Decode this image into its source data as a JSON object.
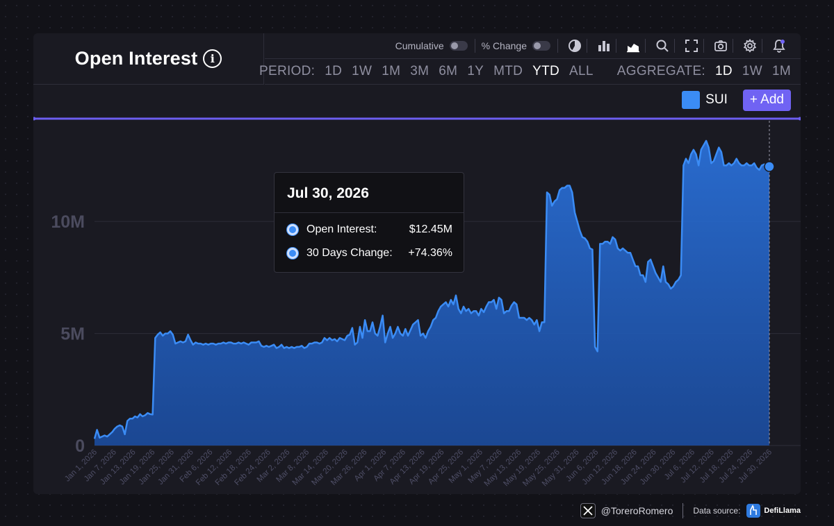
{
  "header": {
    "title": "Open Interest",
    "info_icon": "i"
  },
  "toolbar": {
    "cumulative_label": "Cumulative",
    "pct_change_label": "% Change",
    "icons": [
      "pie-chart-icon",
      "bar-chart-icon",
      "area-chart-icon",
      "search-icon",
      "fullscreen-icon",
      "camera-icon",
      "gear-icon",
      "bell-icon"
    ]
  },
  "period": {
    "label": "PERIOD:",
    "options": [
      "1D",
      "1W",
      "1M",
      "3M",
      "6M",
      "1Y",
      "MTD",
      "YTD",
      "ALL"
    ],
    "selected": "YTD"
  },
  "aggregate": {
    "label": "AGGREGATE:",
    "options": [
      "1D",
      "1W",
      "1M"
    ],
    "selected": "1D"
  },
  "legend": {
    "series_label": "SUI",
    "add_label": "+ Add"
  },
  "tooltip": {
    "date": "Jul 30, 2026",
    "rows": [
      {
        "label": "Open Interest:",
        "value": "$12.45M"
      },
      {
        "label": "30 Days Change:",
        "value": "+74.36%"
      }
    ]
  },
  "footer": {
    "handle": "@ToreroRomero",
    "source_label": "Data source:",
    "brand": "DefiLlama"
  },
  "colors": {
    "series": "#3b8cf5",
    "accent": "#7063f3",
    "background": "#1a1a22"
  },
  "chart_data": {
    "type": "area",
    "title": "Open Interest",
    "xlabel": "",
    "ylabel": "",
    "ylim": [
      0,
      14000000
    ],
    "yticks": [
      0,
      5000000,
      10000000
    ],
    "ytick_labels": [
      "0",
      "5M",
      "10M"
    ],
    "x_tick_labels": [
      "Jan 1, 2026",
      "Jan 7, 2026",
      "Jan 13, 2026",
      "Jan 19, 2026",
      "Jan 25, 2026",
      "Jan 31, 2026",
      "Feb 6, 2026",
      "Feb 12, 2026",
      "Feb 18, 2026",
      "Feb 24, 2026",
      "Mar 2, 2026",
      "Mar 8, 2026",
      "Mar 14, 2026",
      "Mar 20, 2026",
      "Mar 26, 2026",
      "Apr 1, 2026",
      "Apr 7, 2026",
      "Apr 13, 2026",
      "Apr 19, 2026",
      "Apr 25, 2026",
      "May 1, 2026",
      "May 7, 2026",
      "May 13, 2026",
      "May 19, 2026",
      "May 25, 2026",
      "May 31, 2026",
      "Jun 6, 2026",
      "Jun 12, 2026",
      "Jun 18, 2026",
      "Jun 24, 2026",
      "Jun 30, 2026",
      "Jul 6, 2026",
      "Jul 12, 2026",
      "Jul 18, 2026",
      "Jul 24, 2026",
      "Jul 30, 2026"
    ],
    "grid": true,
    "legend": "top-right",
    "series": [
      {
        "name": "SUI",
        "color": "#3b8cf5",
        "values": [
          0.3,
          0.7,
          0.35,
          0.4,
          0.45,
          0.4,
          0.5,
          0.6,
          0.75,
          0.85,
          0.9,
          0.85,
          0.5,
          1.1,
          1.2,
          1.2,
          1.3,
          1.25,
          1.4,
          1.3,
          1.35,
          1.45,
          1.4,
          1.38,
          4.8,
          4.95,
          5.05,
          4.9,
          5.0,
          5.0,
          5.1,
          4.95,
          4.55,
          4.6,
          4.65,
          4.6,
          4.65,
          4.95,
          4.7,
          4.5,
          4.6,
          4.55,
          4.55,
          4.5,
          4.55,
          4.5,
          4.55,
          4.55,
          4.5,
          4.55,
          4.55,
          4.6,
          4.55,
          4.6,
          4.6,
          4.55,
          4.55,
          4.6,
          4.55,
          4.6,
          4.55,
          4.5,
          4.6,
          4.6,
          4.6,
          4.65,
          4.45,
          4.4,
          4.45,
          4.4,
          4.45,
          4.5,
          4.35,
          4.4,
          4.5,
          4.35,
          4.4,
          4.35,
          4.4,
          4.35,
          4.4,
          4.4,
          4.45,
          4.35,
          4.4,
          4.55,
          4.55,
          4.6,
          4.6,
          4.55,
          4.6,
          4.8,
          4.7,
          4.8,
          4.7,
          4.75,
          4.65,
          4.8,
          4.75,
          4.7,
          4.9,
          4.95,
          5.25,
          4.5,
          4.6,
          5.3,
          4.8,
          5.6,
          5.1,
          5.1,
          5.5,
          5.0,
          4.9,
          5.3,
          5.8,
          4.6,
          5.0,
          5.3,
          4.8,
          5.0,
          5.3,
          5.0,
          4.9,
          5.2,
          4.9,
          5.15,
          5.4,
          5.5,
          5.6,
          4.9,
          5.0,
          4.8,
          5.1,
          5.3,
          5.6,
          5.7,
          6.0,
          6.2,
          6.3,
          6.4,
          6.2,
          6.5,
          6.3,
          6.7,
          6.1,
          5.9,
          6.2,
          6.0,
          6.1,
          5.9,
          6.0,
          6.0,
          5.8,
          6.1,
          5.95,
          6.2,
          6.4,
          6.4,
          6.5,
          6.1,
          6.6,
          6.5,
          5.9,
          6.0,
          6.0,
          6.25,
          6.4,
          6.3,
          5.7,
          5.7,
          5.7,
          5.6,
          5.7,
          5.6,
          5.4,
          5.6,
          5.1,
          5.5,
          5.5,
          11.3,
          11.2,
          10.7,
          10.9,
          11.0,
          11.4,
          11.5,
          11.5,
          11.6,
          11.6,
          11.3,
          10.4,
          10.0,
          9.6,
          9.3,
          9.25,
          9.1,
          8.8,
          8.75,
          4.4,
          4.2,
          9.0,
          9.0,
          9.1,
          9.1,
          9.0,
          9.3,
          9.2,
          8.8,
          8.7,
          8.8,
          8.7,
          8.6,
          8.6,
          8.3,
          8.0,
          8.0,
          7.6,
          7.6,
          7.3,
          8.2,
          8.3,
          8.0,
          7.7,
          7.5,
          7.3,
          8.0,
          7.3,
          7.2,
          7.0,
          7.1,
          7.3,
          7.4,
          7.6,
          12.5,
          12.8,
          12.6,
          13.0,
          13.2,
          13.0,
          12.5,
          13.2,
          13.4,
          13.6,
          13.3,
          12.6,
          12.7,
          13.0,
          13.3,
          13.1,
          12.5,
          12.5,
          12.6,
          12.5,
          12.6,
          12.8,
          12.6,
          12.5,
          12.5,
          12.6,
          12.5,
          12.5,
          12.6,
          12.4,
          12.3,
          12.5,
          12.55,
          12.5,
          12.45
        ],
        "unit": "M USD"
      }
    ],
    "highlight": {
      "date": "Jul 30, 2026",
      "value": 12.45
    }
  }
}
